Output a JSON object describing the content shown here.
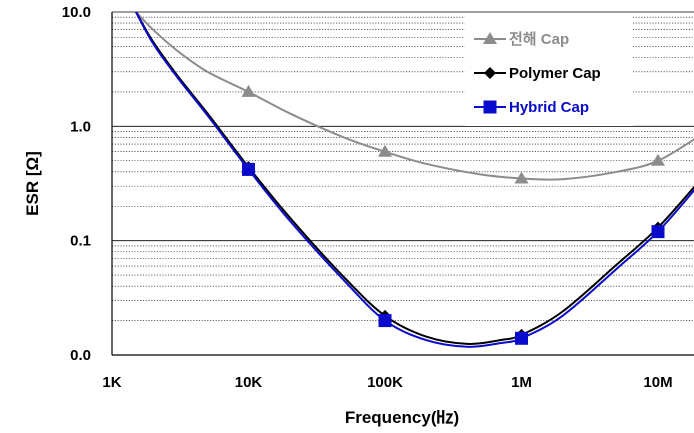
{
  "chart_data": {
    "type": "line",
    "xlabel": "Frequency(㎐)",
    "ylabel": "ESR [Ω]",
    "xscale": "log",
    "yscale": "log",
    "xlim": [
      1000,
      10000000
    ],
    "ylim": [
      0.01,
      10
    ],
    "x_ticks": [
      {
        "value": 1000,
        "label": "1K"
      },
      {
        "value": 10000,
        "label": "10K"
      },
      {
        "value": 100000,
        "label": "100K"
      },
      {
        "value": 1000000,
        "label": "1M"
      },
      {
        "value": 10000000,
        "label": "10M"
      }
    ],
    "y_ticks": [
      {
        "value": 0.01,
        "label": "0.0"
      },
      {
        "value": 0.1,
        "label": "0.1"
      },
      {
        "value": 1,
        "label": "1.0"
      },
      {
        "value": 10,
        "label": "10.0"
      }
    ],
    "grid": "horizontal minor gridlines",
    "legend_position": "top-right",
    "series": [
      {
        "name": "전해 Cap",
        "color": "#8c8c8c",
        "marker": "triangle",
        "markers": [
          [
            10000,
            2.0
          ],
          [
            100000,
            0.6
          ],
          [
            1000000,
            0.35
          ],
          [
            10000000,
            0.5
          ]
        ],
        "curve": [
          [
            1500,
            10
          ],
          [
            2000,
            7.0
          ],
          [
            3000,
            4.6
          ],
          [
            5000,
            3.0
          ],
          [
            10000,
            2.0
          ],
          [
            20000,
            1.3
          ],
          [
            50000,
            0.8
          ],
          [
            100000,
            0.6
          ],
          [
            200000,
            0.47
          ],
          [
            500000,
            0.38
          ],
          [
            1000000,
            0.35
          ],
          [
            2000000,
            0.345
          ],
          [
            5000000,
            0.4
          ],
          [
            10000000,
            0.5
          ],
          [
            20000000,
            0.82
          ]
        ]
      },
      {
        "name": "Polymer Cap",
        "color": "#000000",
        "marker": "diamond",
        "markers": [
          [
            10000,
            0.44
          ],
          [
            100000,
            0.022
          ],
          [
            1000000,
            0.015
          ],
          [
            10000000,
            0.13
          ]
        ],
        "curve": [
          [
            1500,
            10
          ],
          [
            2000,
            5.5
          ],
          [
            3000,
            2.8
          ],
          [
            5000,
            1.3
          ],
          [
            10000,
            0.44
          ],
          [
            20000,
            0.16
          ],
          [
            50000,
            0.048
          ],
          [
            100000,
            0.022
          ],
          [
            200000,
            0.0145
          ],
          [
            400000,
            0.0125
          ],
          [
            700000,
            0.0135
          ],
          [
            1000000,
            0.015
          ],
          [
            2000000,
            0.024
          ],
          [
            5000000,
            0.062
          ],
          [
            10000000,
            0.13
          ],
          [
            20000000,
            0.33
          ]
        ]
      },
      {
        "name": "Hybrid Cap",
        "color": "#0a0acd",
        "marker": "square",
        "markers": [
          [
            10000,
            0.42
          ],
          [
            100000,
            0.02
          ],
          [
            1000000,
            0.014
          ],
          [
            10000000,
            0.12
          ]
        ],
        "curve": [
          [
            1500,
            10
          ],
          [
            2000,
            5.3
          ],
          [
            3000,
            2.7
          ],
          [
            5000,
            1.25
          ],
          [
            10000,
            0.42
          ],
          [
            20000,
            0.15
          ],
          [
            50000,
            0.045
          ],
          [
            100000,
            0.02
          ],
          [
            200000,
            0.0135
          ],
          [
            400000,
            0.0118
          ],
          [
            700000,
            0.0127
          ],
          [
            1000000,
            0.014
          ],
          [
            2000000,
            0.022
          ],
          [
            5000000,
            0.057
          ],
          [
            10000000,
            0.12
          ],
          [
            20000000,
            0.31
          ]
        ]
      }
    ]
  }
}
